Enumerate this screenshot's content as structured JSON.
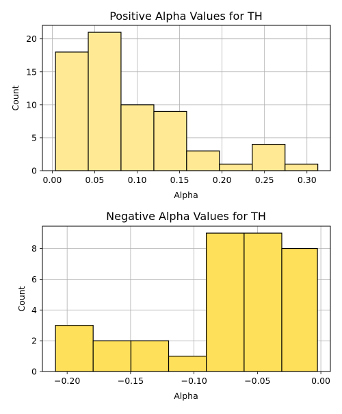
{
  "chart_data": [
    {
      "type": "bar",
      "title": "Positive Alpha Values for TH",
      "xlabel": "Alpha",
      "ylabel": "Count",
      "bar_color": "#ffe994",
      "edge_color": "#000000",
      "grid": true,
      "xlim": [
        -0.0116,
        0.3276
      ],
      "ylim": [
        0,
        22.05
      ],
      "xticks": [
        0.0,
        0.05,
        0.1,
        0.15,
        0.2,
        0.25,
        0.3
      ],
      "xtick_labels": [
        "0.00",
        "0.05",
        "0.10",
        "0.15",
        "0.20",
        "0.25",
        "0.30"
      ],
      "yticks": [
        0,
        5,
        10,
        15,
        20
      ],
      "ytick_labels": [
        "0",
        "5",
        "10",
        "15",
        "20"
      ],
      "bins": [
        {
          "x0": 0.0038,
          "x1": 0.0424,
          "count": 18
        },
        {
          "x0": 0.0424,
          "x1": 0.081,
          "count": 21
        },
        {
          "x0": 0.081,
          "x1": 0.1197,
          "count": 10
        },
        {
          "x0": 0.1197,
          "x1": 0.1583,
          "count": 9
        },
        {
          "x0": 0.1583,
          "x1": 0.1969,
          "count": 3
        },
        {
          "x0": 0.1969,
          "x1": 0.2356,
          "count": 1
        },
        {
          "x0": 0.2356,
          "x1": 0.2742,
          "count": 4
        },
        {
          "x0": 0.2742,
          "x1": 0.3128,
          "count": 1
        }
      ]
    },
    {
      "type": "bar",
      "title": "Negative Alpha Values for TH",
      "xlabel": "Alpha",
      "ylabel": "Count",
      "bar_color": "#ffe05b",
      "edge_color": "#000000",
      "grid": true,
      "xlim": [
        -0.2195,
        0.0075
      ],
      "ylim": [
        0,
        9.45
      ],
      "xticks": [
        -0.2,
        -0.15,
        -0.1,
        -0.05,
        0.0
      ],
      "xtick_labels": [
        "−0.20",
        "−0.15",
        "−0.10",
        "−0.05",
        "0.00"
      ],
      "yticks": [
        0,
        2,
        4,
        6,
        8
      ],
      "ytick_labels": [
        "0",
        "2",
        "4",
        "6",
        "8"
      ],
      "bins": [
        {
          "x0": -0.2092,
          "x1": -0.1795,
          "count": 3
        },
        {
          "x0": -0.1795,
          "x1": -0.1497,
          "count": 2
        },
        {
          "x0": -0.1497,
          "x1": -0.12,
          "count": 2
        },
        {
          "x0": -0.12,
          "x1": -0.0903,
          "count": 1
        },
        {
          "x0": -0.0903,
          "x1": -0.0605,
          "count": 9
        },
        {
          "x0": -0.0605,
          "x1": -0.0308,
          "count": 9
        },
        {
          "x0": -0.0308,
          "x1": -0.0027,
          "count": 8
        }
      ]
    }
  ]
}
